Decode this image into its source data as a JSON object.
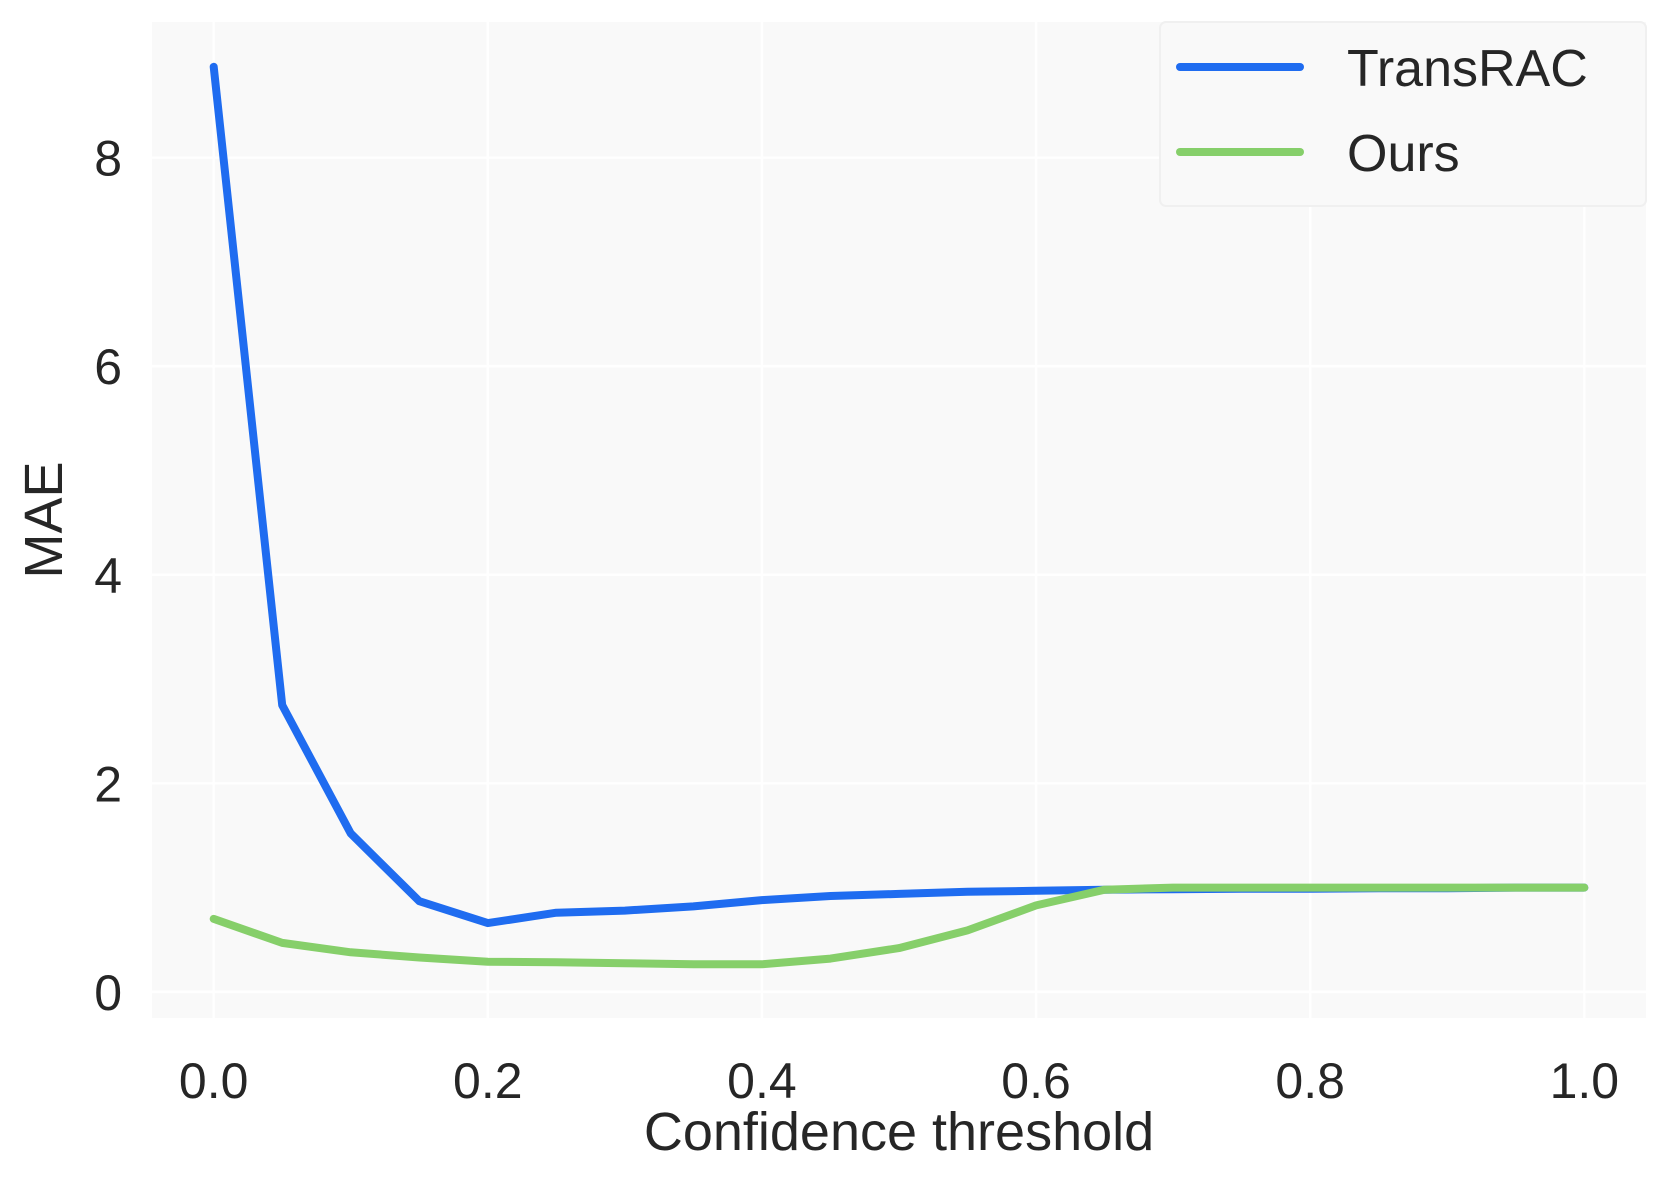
{
  "chart_data": {
    "type": "line",
    "title": "",
    "xlabel": "Confidence threshold",
    "ylabel": "MAE",
    "xlim": [
      -0.045,
      1.045
    ],
    "ylim": [
      -0.25,
      9.3
    ],
    "xticks": [
      0.0,
      0.2,
      0.4,
      0.6,
      0.8,
      1.0
    ],
    "xtick_labels": [
      "0.0",
      "0.2",
      "0.4",
      "0.6",
      "0.8",
      "1.0"
    ],
    "yticks": [
      0,
      2,
      4,
      6,
      8
    ],
    "ytick_labels": [
      "0",
      "2",
      "4",
      "6",
      "8"
    ],
    "grid": true,
    "legend_position": "top-right",
    "x": [
      0.0,
      0.05,
      0.1,
      0.15,
      0.2,
      0.25,
      0.3,
      0.35,
      0.4,
      0.45,
      0.5,
      0.55,
      0.6,
      0.65,
      0.7,
      0.75,
      0.8,
      0.85,
      0.9,
      0.95,
      1.0
    ],
    "series": [
      {
        "name": "TransRAC",
        "color": "#1f6cf0",
        "values": [
          8.87,
          2.75,
          1.52,
          0.87,
          0.66,
          0.76,
          0.78,
          0.82,
          0.88,
          0.92,
          0.94,
          0.96,
          0.97,
          0.98,
          0.985,
          0.99,
          0.99,
          0.995,
          0.995,
          1.0,
          1.0
        ]
      },
      {
        "name": "Ours",
        "color": "#86cf6a",
        "values": [
          0.7,
          0.47,
          0.38,
          0.33,
          0.29,
          0.285,
          0.275,
          0.265,
          0.265,
          0.32,
          0.42,
          0.59,
          0.83,
          0.98,
          1.0,
          1.0,
          1.0,
          1.0,
          1.0,
          1.0,
          1.0
        ]
      }
    ]
  }
}
